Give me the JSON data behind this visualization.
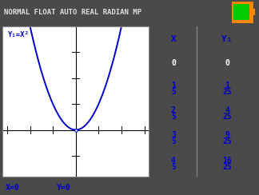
{
  "title_bar_text": "NORMAL FLOAT AUTO REAL RADIAN MP",
  "title_bar_bg": "#4a4a4a",
  "title_bar_fg": "#e0e0e0",
  "screen_bg": "#c0c0c0",
  "graph_bg": "#ffffff",
  "graph_label": "Y₁=X²",
  "status_x": "X=0",
  "status_y": "Y=0",
  "curve_color": "#0000cc",
  "axis_color": "#000000",
  "tick_color": "#000000",
  "table_header_bg": "#000000",
  "table_header_fg": "#ffffff",
  "table_y_header_color": "#0000cc",
  "table_bg": "#ffffff",
  "table_border_color": "#888888",
  "table_line_color": "#cccccc",
  "table_x_header": "X",
  "table_y_header": "Y₁",
  "table_x_vals": [
    "0",
    "1\n5",
    "2\n5",
    "3\n5",
    "4\n5"
  ],
  "table_y_vals": [
    "0",
    "1\n25",
    "4\n25",
    "9\n25",
    "16\n25"
  ],
  "battery_fill": "#00cc00",
  "battery_border": "#ff8800",
  "graph_xlim": [
    -3.2,
    3.2
  ],
  "graph_ylim": [
    -1.8,
    4.0
  ],
  "outer_border": "#888888"
}
